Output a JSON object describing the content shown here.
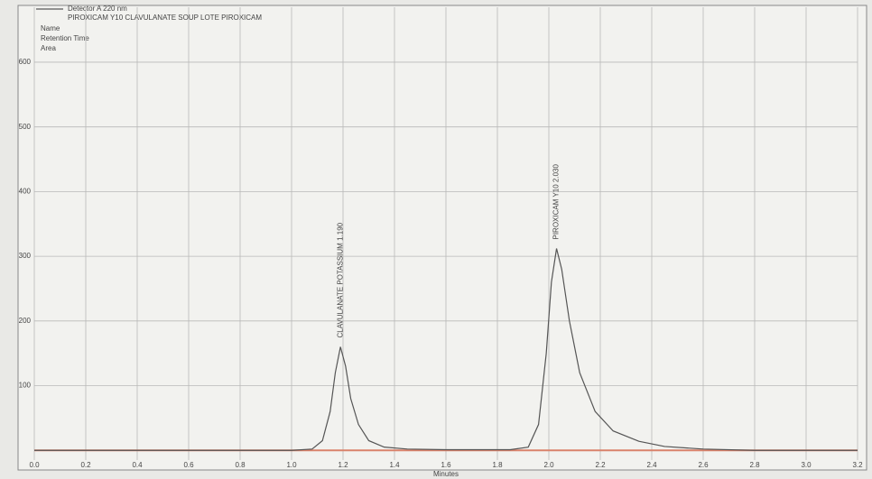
{
  "chart_data": {
    "type": "line",
    "legend": [
      "Detector A 220 nm",
      "PIROXICAM Y10 CLAVULANATE SOUP LOTE PIROXICAM"
    ],
    "table_headers": [
      "Name",
      "Retention Time",
      "Area"
    ],
    "xlabel": "Minutes",
    "x": [
      0.0,
      1.0,
      1.08,
      1.12,
      1.15,
      1.17,
      1.19,
      1.21,
      1.23,
      1.26,
      1.3,
      1.36,
      1.45,
      1.6,
      1.85,
      1.92,
      1.96,
      1.99,
      2.01,
      2.03,
      2.05,
      2.08,
      2.12,
      2.18,
      2.25,
      2.35,
      2.45,
      2.6,
      2.8,
      3.2
    ],
    "series": [
      {
        "name": "Detector A 220 nm",
        "color": "#555555",
        "values": [
          0,
          0,
          2,
          15,
          60,
          120,
          160,
          130,
          80,
          40,
          15,
          5,
          2,
          1,
          1,
          5,
          40,
          150,
          260,
          312,
          280,
          200,
          120,
          60,
          30,
          14,
          6,
          2,
          0,
          0
        ]
      }
    ],
    "annotations": [
      {
        "text": "CLAVULANATE POTASSIUM 1.190",
        "x": 1.19
      },
      {
        "text": "PIROXICAM Y10 2.030",
        "x": 2.03
      }
    ],
    "xlim": [
      0.0,
      3.2
    ],
    "xticks": [
      {
        "value": 0,
        "label": "0.0"
      },
      0.2,
      0.4,
      0.6,
      0.8,
      {
        "value": 1,
        "label": "1.0"
      },
      1.2,
      1.4,
      1.6,
      1.8,
      {
        "value": 2,
        "label": "2.0"
      },
      2.2,
      2.4,
      2.6,
      2.8,
      {
        "value": 3,
        "label": "3.0"
      },
      3.2
    ],
    "ylim": [
      -15,
      685
    ],
    "yticks": [
      100,
      200,
      300,
      400,
      500,
      600
    ],
    "grid": true
  }
}
